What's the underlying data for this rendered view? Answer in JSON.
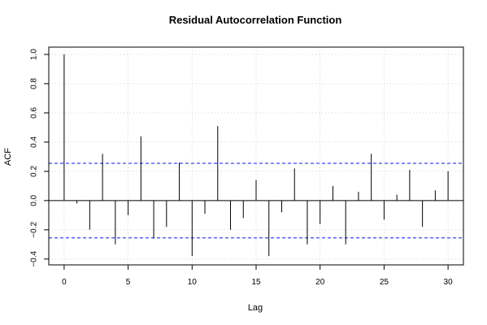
{
  "chart_data": {
    "type": "bar",
    "title": "Residual Autocorrelation Function",
    "xlabel": "Lag",
    "ylabel": "ACF",
    "xlim": [
      -1.2,
      31.2
    ],
    "ylim": [
      -0.44,
      1.05
    ],
    "x_ticks": [
      0,
      5,
      10,
      15,
      20,
      25,
      30
    ],
    "x_tick_labels": [
      "0",
      "5",
      "10",
      "15",
      "20",
      "25",
      "30"
    ],
    "y_ticks": [
      -0.4,
      -0.2,
      0.0,
      0.2,
      0.4,
      0.6,
      0.8,
      1.0
    ],
    "y_tick_labels": [
      "−0.4",
      "−0.2",
      "0.0",
      "0.2",
      "0.4",
      "0.6",
      "0.8",
      "1.0"
    ],
    "grid": true,
    "confidence_bound": 0.255,
    "colors": {
      "bars": "#000000",
      "bounds": "#4040ff",
      "grid": "#d3d3d3",
      "frame": "#000000"
    },
    "lags": [
      0,
      1,
      2,
      3,
      4,
      5,
      6,
      7,
      8,
      9,
      10,
      11,
      12,
      13,
      14,
      15,
      16,
      17,
      18,
      19,
      20,
      21,
      22,
      23,
      24,
      25,
      26,
      27,
      28,
      29,
      30
    ],
    "values": [
      1.0,
      -0.02,
      -0.2,
      0.32,
      -0.3,
      -0.1,
      0.44,
      -0.26,
      -0.18,
      0.26,
      -0.38,
      -0.09,
      0.51,
      -0.2,
      -0.12,
      0.14,
      -0.38,
      -0.08,
      0.22,
      -0.3,
      -0.16,
      0.1,
      -0.3,
      0.06,
      0.32,
      -0.13,
      0.04,
      0.21,
      -0.18,
      0.07,
      0.2
    ]
  }
}
